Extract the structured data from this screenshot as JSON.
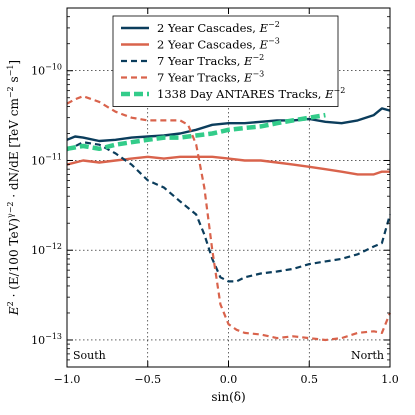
{
  "chart_data": {
    "type": "line",
    "xlabel": "sin(δ)",
    "ylabel": "E² · (E/100 TeV)^{γ−2} · dN/dE  [TeV cm⁻² s⁻¹]",
    "ylabel_parts": {
      "base": "E",
      "pow1": "2",
      "mid": " · (E/100 TeV)",
      "pow2": "γ−2",
      "end": " · dN/dE  [TeV cm",
      "pow3": "−2",
      "s": " s",
      "pow4": "−1",
      "close": "]"
    },
    "xlim": [
      -1.0,
      1.0
    ],
    "ylim": [
      5e-14,
      5e-10
    ],
    "yscale": "log",
    "grid": true,
    "legend_position": "top-center",
    "x_ticks": [
      -1.0,
      -0.5,
      0.0,
      0.5,
      1.0
    ],
    "x_tick_labels": [
      "−1.0",
      "−0.5",
      "0.0",
      "0.5",
      "1.0"
    ],
    "y_ticks": [
      1e-13,
      1e-12,
      1e-11,
      1e-10
    ],
    "y_tick_labels": [
      {
        "base": "10",
        "exp": "−13"
      },
      {
        "base": "10",
        "exp": "−12"
      },
      {
        "base": "10",
        "exp": "−11"
      },
      {
        "base": "10",
        "exp": "−10"
      }
    ],
    "annotations": [
      {
        "text": "South",
        "x": -0.95,
        "position": "bottom-left"
      },
      {
        "text": "North",
        "x": 0.95,
        "position": "bottom-right"
      }
    ],
    "series": [
      {
        "name": "2 Year Cascades, E",
        "name_exp": "−2",
        "color": "#0b3d5c",
        "style": "solid",
        "x": [
          -1.0,
          -0.95,
          -0.9,
          -0.8,
          -0.7,
          -0.6,
          -0.5,
          -0.4,
          -0.3,
          -0.2,
          -0.1,
          0.0,
          0.1,
          0.2,
          0.3,
          0.4,
          0.5,
          0.6,
          0.7,
          0.8,
          0.9,
          0.95,
          1.0
        ],
        "y": [
          1.7e-11,
          1.85e-11,
          1.8e-11,
          1.65e-11,
          1.7e-11,
          1.8e-11,
          1.85e-11,
          1.9e-11,
          2e-11,
          2.2e-11,
          2.5e-11,
          2.6e-11,
          2.6e-11,
          2.7e-11,
          2.8e-11,
          2.8e-11,
          2.9e-11,
          2.7e-11,
          2.6e-11,
          2.8e-11,
          3.2e-11,
          3.8e-11,
          3.6e-11
        ]
      },
      {
        "name": "2 Year Cascades, E",
        "name_exp": "−3",
        "color": "#d9634c",
        "style": "solid",
        "x": [
          -1.0,
          -0.9,
          -0.8,
          -0.7,
          -0.6,
          -0.5,
          -0.4,
          -0.3,
          -0.2,
          -0.1,
          0.0,
          0.1,
          0.2,
          0.3,
          0.4,
          0.5,
          0.6,
          0.7,
          0.8,
          0.9,
          0.95,
          1.0
        ],
        "y": [
          9e-12,
          1e-11,
          9.5e-12,
          1e-11,
          1.05e-11,
          1.1e-11,
          1.05e-11,
          1.1e-11,
          1.1e-11,
          1.1e-11,
          1.05e-11,
          1e-11,
          1e-11,
          9.5e-12,
          9e-12,
          8.5e-12,
          8e-12,
          7.5e-12,
          7e-12,
          7e-12,
          7.5e-12,
          7.5e-12
        ]
      },
      {
        "name": "7 Year Tracks, E",
        "name_exp": "−2",
        "color": "#0b3d5c",
        "style": "dashed",
        "x": [
          -1.0,
          -0.9,
          -0.8,
          -0.7,
          -0.6,
          -0.5,
          -0.4,
          -0.3,
          -0.2,
          -0.15,
          -0.1,
          -0.05,
          0.0,
          0.05,
          0.1,
          0.2,
          0.3,
          0.4,
          0.5,
          0.6,
          0.7,
          0.8,
          0.9,
          0.95,
          1.0
        ],
        "y": [
          1.3e-11,
          1.6e-11,
          1.5e-11,
          1.2e-11,
          9e-12,
          6e-12,
          5e-12,
          3.5e-12,
          2.5e-12,
          1.5e-12,
          8e-13,
          5e-13,
          4.5e-13,
          4.5e-13,
          5e-13,
          5.5e-13,
          5.8e-13,
          6.2e-13,
          7e-13,
          7.5e-13,
          8e-13,
          9e-13,
          1.1e-12,
          1.2e-12,
          2.5e-12
        ]
      },
      {
        "name": "7 Year Tracks, E",
        "name_exp": "−3",
        "color": "#d9634c",
        "style": "dashed",
        "x": [
          -1.0,
          -0.95,
          -0.9,
          -0.8,
          -0.7,
          -0.6,
          -0.5,
          -0.4,
          -0.3,
          -0.25,
          -0.2,
          -0.15,
          -0.1,
          -0.05,
          0.0,
          0.05,
          0.1,
          0.2,
          0.3,
          0.4,
          0.5,
          0.6,
          0.7,
          0.8,
          0.9,
          0.95,
          1.0
        ],
        "y": [
          4.3e-11,
          4.8e-11,
          5.2e-11,
          4.5e-11,
          3.5e-11,
          3e-11,
          2.8e-11,
          2.8e-11,
          2.8e-11,
          2.5e-11,
          1.5e-11,
          5e-12,
          1e-12,
          2.5e-13,
          1.5e-13,
          1.3e-13,
          1.2e-13,
          1.15e-13,
          1.05e-13,
          1.1e-13,
          1.05e-13,
          1e-13,
          1.05e-13,
          1.2e-13,
          1.25e-13,
          1.2e-13,
          2e-13
        ]
      },
      {
        "name": "1338 Day ANTARES Tracks, E",
        "name_exp": "−2",
        "color": "#33cc8a",
        "style": "thick-dashed",
        "x": [
          -1.0,
          -0.9,
          -0.8,
          -0.7,
          -0.6,
          -0.5,
          -0.4,
          -0.3,
          -0.2,
          -0.1,
          0.0,
          0.1,
          0.2,
          0.3,
          0.4,
          0.5,
          0.6
        ],
        "y": [
          1.35e-11,
          1.45e-11,
          1.35e-11,
          1.5e-11,
          1.6e-11,
          1.7e-11,
          1.8e-11,
          1.8e-11,
          1.9e-11,
          2e-11,
          2.2e-11,
          2.3e-11,
          2.4e-11,
          2.6e-11,
          2.8e-11,
          3e-11,
          3.2e-11
        ]
      }
    ]
  }
}
